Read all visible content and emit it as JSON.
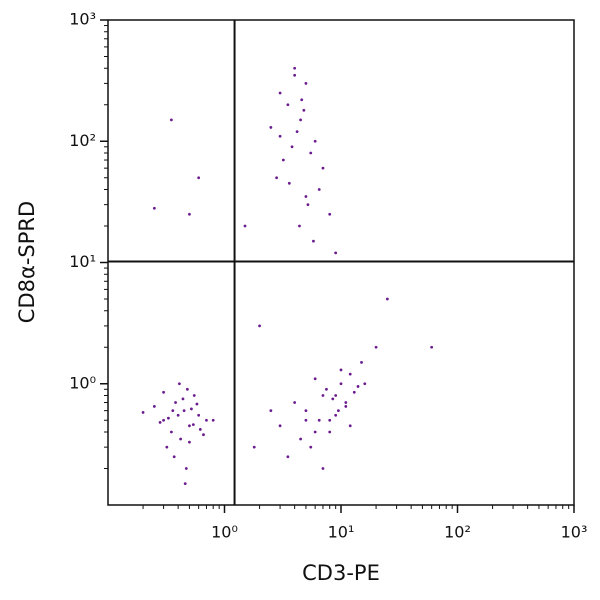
{
  "chart_data": {
    "type": "scatter",
    "x_label": "CD3-PE",
    "y_label": "CD8α-SPRD",
    "xscale": "log",
    "yscale": "log",
    "xlim": [
      0.1,
      1000
    ],
    "ylim": [
      0.1,
      1000
    ],
    "xticks": [
      {
        "value": 1,
        "label": "10⁰"
      },
      {
        "value": 10,
        "label": "10¹"
      },
      {
        "value": 100,
        "label": "10²"
      },
      {
        "value": 1000,
        "label": "10³"
      }
    ],
    "yticks": [
      {
        "value": 1,
        "label": "10⁰"
      },
      {
        "value": 10,
        "label": "10¹"
      },
      {
        "value": 100,
        "label": "10²"
      },
      {
        "value": 1000,
        "label": "10³"
      }
    ],
    "minor_ticks": [
      0.2,
      0.3,
      0.4,
      0.5,
      0.6,
      0.7,
      0.8,
      0.9,
      2,
      3,
      4,
      5,
      6,
      7,
      8,
      9,
      20,
      30,
      40,
      50,
      60,
      70,
      80,
      90,
      200,
      300,
      400,
      500,
      600,
      700,
      800,
      900
    ],
    "gates": {
      "x": 1.22,
      "y": 10.2
    },
    "series": [
      {
        "color": "#6a1b8f",
        "x": [
          0.3,
          0.45,
          0.5,
          0.38,
          0.6,
          0.42,
          0.25,
          0.55,
          0.7,
          0.35,
          0.48,
          0.32,
          0.4,
          0.52,
          0.28,
          0.62,
          0.44,
          0.37,
          0.58,
          0.2,
          0.47,
          0.33,
          0.66,
          0.41,
          0.5,
          0.36,
          0.54,
          0.3,
          0.46,
          0.8,
          5,
          7,
          8,
          10,
          6,
          4,
          12,
          9,
          3,
          15,
          11,
          7.5,
          5.5,
          8.5,
          13,
          6.5,
          3.5,
          10,
          9.5,
          4.5,
          14,
          7,
          2.5,
          11,
          6,
          8,
          16,
          5,
          9,
          12,
          4,
          5,
          3.5,
          4.5,
          6,
          3,
          5.5,
          4.2,
          7,
          2.8,
          4.8,
          3.8,
          6.5,
          5.2,
          4,
          3.2,
          8,
          4.4,
          2.5,
          5.8,
          3.6,
          4.6,
          9,
          3,
          5,
          0.35,
          0.5,
          0.25,
          0.6,
          2,
          1.5,
          20,
          60,
          25,
          1.8
        ],
        "y": [
          0.5,
          0.6,
          0.45,
          0.7,
          0.55,
          0.35,
          0.65,
          0.8,
          0.5,
          0.4,
          0.9,
          0.3,
          0.55,
          0.62,
          0.48,
          0.42,
          0.75,
          0.25,
          0.68,
          0.58,
          0.2,
          0.52,
          0.38,
          1.0,
          0.33,
          0.6,
          0.46,
          0.85,
          0.15,
          0.5,
          0.6,
          0.8,
          0.5,
          1.0,
          0.4,
          0.7,
          1.2,
          0.55,
          0.45,
          1.5,
          0.65,
          0.9,
          0.3,
          0.75,
          0.85,
          0.5,
          0.25,
          1.3,
          0.6,
          0.35,
          0.95,
          0.2,
          0.6,
          0.7,
          1.1,
          0.4,
          1.0,
          0.5,
          0.8,
          0.45,
          400,
          300,
          200,
          150,
          100,
          250,
          80,
          120,
          60,
          50,
          180,
          90,
          40,
          30,
          350,
          70,
          25,
          20,
          130,
          15,
          45,
          220,
          12,
          110,
          35,
          150,
          25,
          28,
          50,
          3,
          20,
          2,
          2,
          5,
          0.3
        ]
      }
    ]
  }
}
